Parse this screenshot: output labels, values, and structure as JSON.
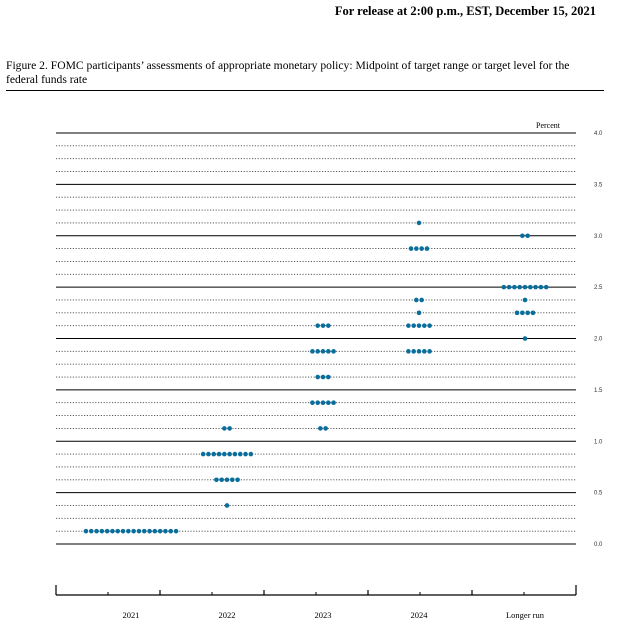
{
  "header": {
    "release_note": "For release at 2:00 p.m., EST, December 15, 2021",
    "figure_caption": "Figure 2.  FOMC participants’ assessments of appropriate monetary policy: Midpoint of target range or target level for the federal funds rate"
  },
  "chart_data": {
    "type": "scatter",
    "ylabel": "Percent",
    "ylim": [
      0,
      4
    ],
    "yticks": [
      "0.0",
      "0.5",
      "1.0",
      "1.5",
      "2.0",
      "2.5",
      "3.0",
      "3.5",
      "4.0"
    ],
    "categories": [
      "2021",
      "2022",
      "2023",
      "2024",
      "Longer run"
    ],
    "dot_color": "#0a6e9c",
    "grid": "dotted lines every 0.125 percentage point, solid lines at whole and half percents",
    "series": [
      {
        "category": "2021",
        "points": [
          {
            "y": 0.125,
            "count": 18
          }
        ]
      },
      {
        "category": "2022",
        "points": [
          {
            "y": 1.125,
            "count": 2
          },
          {
            "y": 0.875,
            "count": 10
          },
          {
            "y": 0.625,
            "count": 5
          },
          {
            "y": 0.375,
            "count": 1
          }
        ]
      },
      {
        "category": "2023",
        "points": [
          {
            "y": 2.125,
            "count": 3
          },
          {
            "y": 1.875,
            "count": 5
          },
          {
            "y": 1.625,
            "count": 3
          },
          {
            "y": 1.375,
            "count": 5
          },
          {
            "y": 1.125,
            "count": 2
          }
        ]
      },
      {
        "category": "2024",
        "points": [
          {
            "y": 3.125,
            "count": 1
          },
          {
            "y": 2.875,
            "count": 4
          },
          {
            "y": 2.375,
            "count": 2
          },
          {
            "y": 2.25,
            "count": 1
          },
          {
            "y": 2.125,
            "count": 5
          },
          {
            "y": 1.875,
            "count": 5
          }
        ]
      },
      {
        "category": "Longer run",
        "points": [
          {
            "y": 3.0,
            "count": 2
          },
          {
            "y": 2.5,
            "count": 9
          },
          {
            "y": 2.375,
            "count": 1
          },
          {
            "y": 2.25,
            "count": 4
          },
          {
            "y": 2.0,
            "count": 1
          }
        ]
      }
    ]
  }
}
